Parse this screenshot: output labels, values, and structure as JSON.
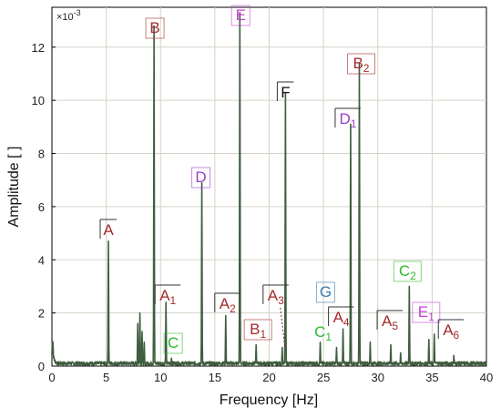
{
  "chart_data": {
    "type": "line",
    "xlabel": "Frequency [Hz]",
    "ylabel": "Amplitude [ ]",
    "y_exponent_label": "×10",
    "y_exponent_power": "-3",
    "xlim": [
      0,
      40
    ],
    "ylim": [
      0,
      13.5
    ],
    "grid": true,
    "x_ticks": [
      0,
      5,
      10,
      15,
      20,
      25,
      30,
      35,
      40
    ],
    "y_ticks": [
      0,
      2,
      4,
      6,
      8,
      10,
      12
    ],
    "x_tick_labels": [
      "0",
      "5",
      "10",
      "15",
      "20",
      "25",
      "30",
      "35",
      "40"
    ],
    "y_tick_labels": [
      "0",
      "2",
      "4",
      "6",
      "8",
      "10",
      "12"
    ],
    "line_color": "#3f5e3f",
    "peaks": [
      {
        "x": 0.1,
        "y": 0.9
      },
      {
        "x": 5.2,
        "y": 4.7
      },
      {
        "x": 7.9,
        "y": 1.6
      },
      {
        "x": 8.1,
        "y": 2.0
      },
      {
        "x": 8.3,
        "y": 1.3
      },
      {
        "x": 8.5,
        "y": 0.9
      },
      {
        "x": 9.4,
        "y": 12.8
      },
      {
        "x": 10.5,
        "y": 2.4
      },
      {
        "x": 11.0,
        "y": 0.3
      },
      {
        "x": 13.8,
        "y": 6.9
      },
      {
        "x": 16.0,
        "y": 1.9
      },
      {
        "x": 17.3,
        "y": 13.3
      },
      {
        "x": 18.8,
        "y": 0.8
      },
      {
        "x": 21.2,
        "y": 0.7
      },
      {
        "x": 21.5,
        "y": 10.3
      },
      {
        "x": 24.7,
        "y": 0.9
      },
      {
        "x": 26.2,
        "y": 0.7
      },
      {
        "x": 26.8,
        "y": 1.4
      },
      {
        "x": 27.5,
        "y": 9.1
      },
      {
        "x": 28.3,
        "y": 11.4
      },
      {
        "x": 29.3,
        "y": 0.9
      },
      {
        "x": 31.2,
        "y": 0.8
      },
      {
        "x": 32.1,
        "y": 0.5
      },
      {
        "x": 32.9,
        "y": 3.0
      },
      {
        "x": 34.7,
        "y": 1.0
      },
      {
        "x": 35.2,
        "y": 1.2
      },
      {
        "x": 37.0,
        "y": 0.4
      }
    ],
    "noise_floor": 0.12,
    "annotations": [
      {
        "label": "A",
        "sub": "",
        "x": 5.2,
        "y": 4.7,
        "color": "#a52a2a",
        "overline": true,
        "boxed": false
      },
      {
        "label": "B",
        "sub": "",
        "x": 9.4,
        "y": 12.8,
        "color": "#a52a2a",
        "overline": false,
        "boxed": true
      },
      {
        "label": "A",
        "sub": "1",
        "x": 10.5,
        "y": 2.4,
        "color": "#a52a2a",
        "overline": true,
        "boxed": false
      },
      {
        "label": "C",
        "sub": "",
        "x": 11.0,
        "y": 0.3,
        "color": "#2db82d",
        "overline": false,
        "boxed": true
      },
      {
        "label": "D",
        "sub": "",
        "x": 13.8,
        "y": 6.9,
        "color": "#9a3fc8",
        "overline": false,
        "boxed": true
      },
      {
        "label": "A",
        "sub": "2",
        "x": 16.0,
        "y": 1.9,
        "color": "#a52a2a",
        "overline": true,
        "boxed": false
      },
      {
        "label": "E",
        "sub": "",
        "x": 17.3,
        "y": 13.3,
        "color": "#c83fd8",
        "overline": false,
        "boxed": true
      },
      {
        "label": "B",
        "sub": "1",
        "x": 18.8,
        "y": 0.8,
        "color": "#a52a2a",
        "overline": false,
        "boxed": true
      },
      {
        "label": "A",
        "sub": "3",
        "x": 21.2,
        "y": 0.7,
        "color": "#a52a2a",
        "overline": true,
        "boxed": false
      },
      {
        "label": "F",
        "sub": "",
        "x": 21.5,
        "y": 10.3,
        "color": "#111111",
        "overline": true,
        "boxed": false
      },
      {
        "label": "C",
        "sub": "1",
        "x": 24.7,
        "y": 0.9,
        "color": "#2db82d",
        "overline": false,
        "boxed": false
      },
      {
        "label": "G",
        "sub": "",
        "x": 26.2,
        "y": 0.7,
        "color": "#3a7aa8",
        "overline": false,
        "boxed": true
      },
      {
        "label": "A",
        "sub": "4",
        "x": 26.8,
        "y": 1.4,
        "color": "#a52a2a",
        "overline": true,
        "boxed": false
      },
      {
        "label": "D",
        "sub": "1",
        "x": 27.5,
        "y": 9.1,
        "color": "#9a3fc8",
        "overline": true,
        "boxed": false
      },
      {
        "label": "B",
        "sub": "2",
        "x": 28.3,
        "y": 11.4,
        "color": "#a52a2a",
        "overline": false,
        "boxed": true
      },
      {
        "label": "A",
        "sub": "5",
        "x": 31.2,
        "y": 0.8,
        "color": "#a52a2a",
        "overline": true,
        "boxed": false
      },
      {
        "label": "C",
        "sub": "2",
        "x": 32.9,
        "y": 3.0,
        "color": "#2db82d",
        "overline": false,
        "boxed": true
      },
      {
        "label": "E",
        "sub": "1",
        "x": 34.7,
        "y": 1.0,
        "color": "#c83fd8",
        "overline": false,
        "boxed": true
      },
      {
        "label": "A",
        "sub": "6",
        "x": 37.0,
        "y": 0.4,
        "color": "#a52a2a",
        "overline": true,
        "boxed": false
      }
    ]
  }
}
